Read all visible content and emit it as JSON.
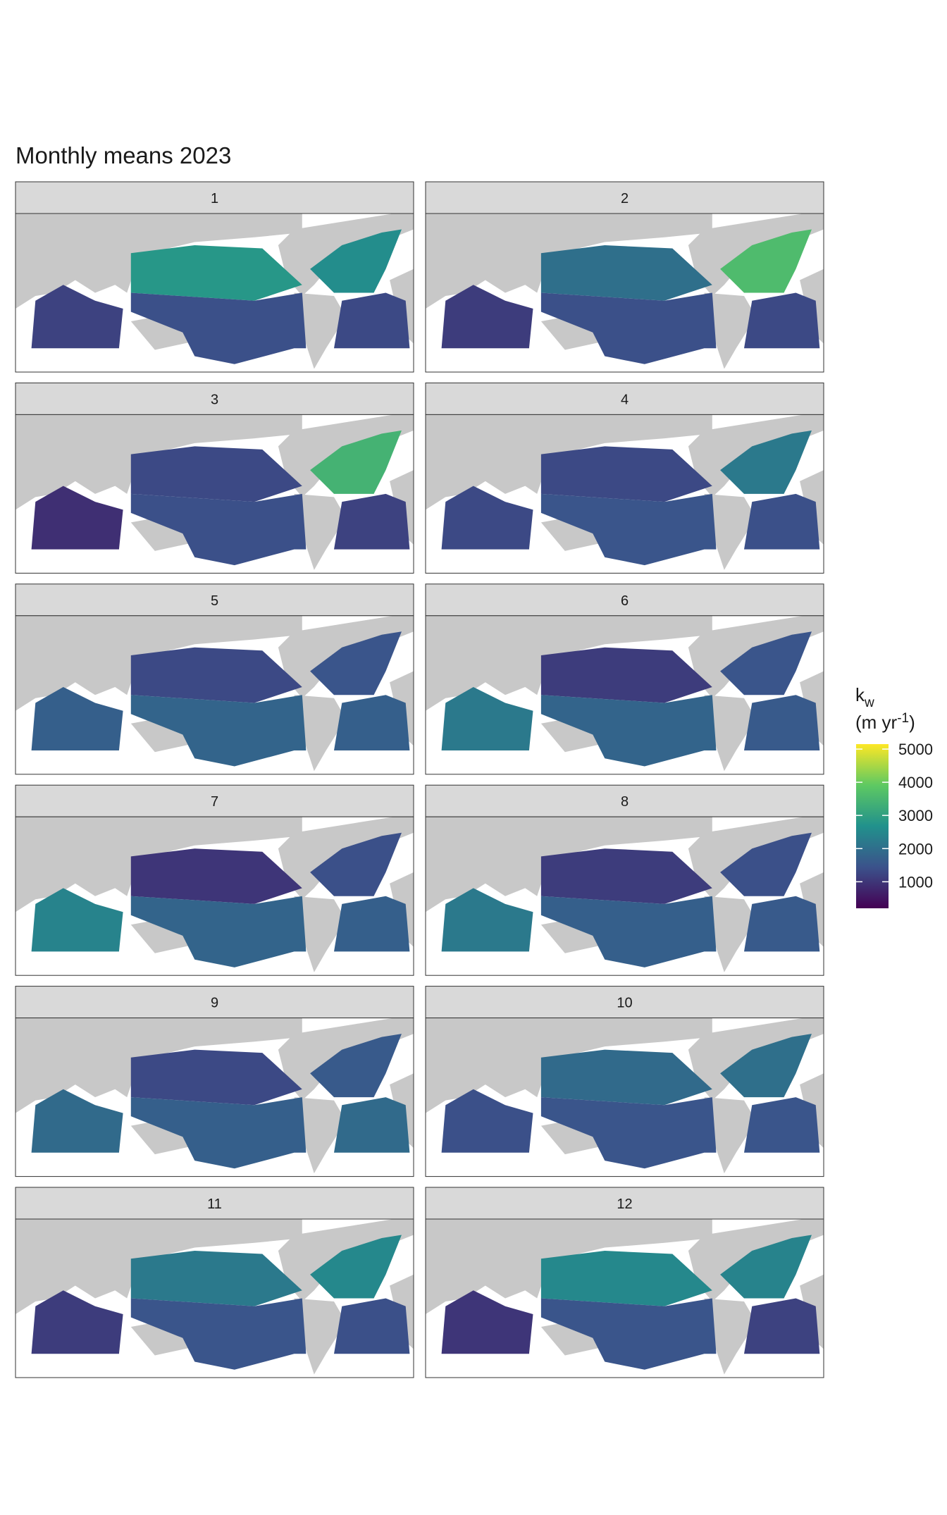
{
  "chart_data": {
    "type": "facet-map",
    "title": "Monthly means 2023",
    "legend_title": {
      "main": "k",
      "sub": "w",
      "unit_start": "(m yr",
      "unit_sup": "-1",
      "unit_end": ")"
    },
    "colors": [
      "#440154",
      "#3b528b",
      "#21918c",
      "#5ec962",
      "#fde725"
    ],
    "colorlim": [
      200,
      5150
    ],
    "colorticks": [
      1000,
      2000,
      3000,
      4000,
      5000
    ],
    "panels": [
      {
        "label": "1",
        "values": [
          2800,
          1400,
          2600,
          1300,
          1200
        ]
      },
      {
        "label": "2",
        "values": [
          2000,
          1400,
          3600,
          1300,
          1100
        ]
      },
      {
        "label": "3",
        "values": [
          1300,
          1400,
          3400,
          1200,
          900
        ]
      },
      {
        "label": "4",
        "values": [
          1300,
          1500,
          2200,
          1400,
          1300
        ]
      },
      {
        "label": "5",
        "values": [
          1300,
          1800,
          1500,
          1700,
          1700
        ]
      },
      {
        "label": "6",
        "values": [
          1100,
          1800,
          1500,
          1600,
          2200
        ]
      },
      {
        "label": "7",
        "values": [
          1000,
          1800,
          1400,
          1700,
          2400
        ]
      },
      {
        "label": "8",
        "values": [
          1100,
          1700,
          1400,
          1600,
          2200
        ]
      },
      {
        "label": "9",
        "values": [
          1300,
          1700,
          1600,
          1900,
          1900
        ]
      },
      {
        "label": "10",
        "values": [
          1900,
          1500,
          2000,
          1500,
          1400
        ]
      },
      {
        "label": "11",
        "values": [
          2200,
          1500,
          2500,
          1400,
          1100
        ]
      },
      {
        "label": "12",
        "values": [
          2500,
          1500,
          2400,
          1200,
          1000
        ]
      }
    ]
  }
}
